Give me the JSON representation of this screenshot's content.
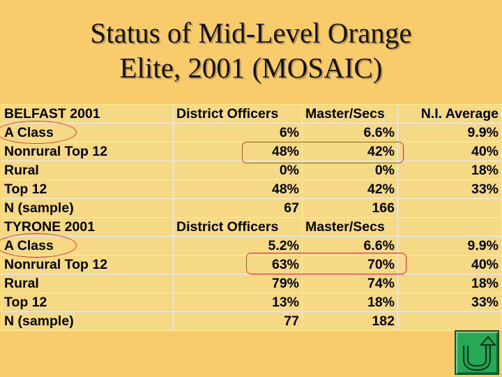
{
  "title_lines": [
    "Status of Mid-Level Orange",
    "Elite, 2001 (MOSAIC)"
  ],
  "table": {
    "rows": [
      {
        "cells": [
          "BELFAST 2001",
          "District Officers",
          "Master/Secs",
          "N.I. Average"
        ],
        "kind": "header"
      },
      {
        "cells": [
          "A Class",
          "6%",
          "6.6%",
          "9.9%"
        ],
        "kind": "data"
      },
      {
        "cells": [
          "Nonrural Top 12",
          "48%",
          "42%",
          "40%"
        ],
        "kind": "data"
      },
      {
        "cells": [
          "Rural",
          "0%",
          "0%",
          "18%"
        ],
        "kind": "data"
      },
      {
        "cells": [
          "Top 12",
          "48%",
          "42%",
          "33%"
        ],
        "kind": "data"
      },
      {
        "cells": [
          "N (sample)",
          "67",
          "166",
          ""
        ],
        "kind": "data"
      },
      {
        "cells": [
          "TYRONE 2001",
          "District Officers",
          "Master/Secs",
          ""
        ],
        "kind": "header"
      },
      {
        "cells": [
          "A Class",
          "5.2%",
          "6.6%",
          "9.9%"
        ],
        "kind": "data"
      },
      {
        "cells": [
          "Nonrural Top 12",
          "63%",
          "70%",
          "40%"
        ],
        "kind": "data"
      },
      {
        "cells": [
          "Rural",
          "79%",
          "74%",
          "18%"
        ],
        "kind": "data"
      },
      {
        "cells": [
          "Top 12",
          "13%",
          "18%",
          "33%"
        ],
        "kind": "data"
      },
      {
        "cells": [
          "N (sample)",
          "77",
          "182",
          ""
        ],
        "kind": "data"
      }
    ]
  },
  "colors": {
    "background": "#F8CC6A",
    "table_fill": "#F6D985",
    "annotation": "#DD3333",
    "button": "#26A856"
  },
  "icons": {
    "back_button": "u-turn-arrow-icon"
  }
}
